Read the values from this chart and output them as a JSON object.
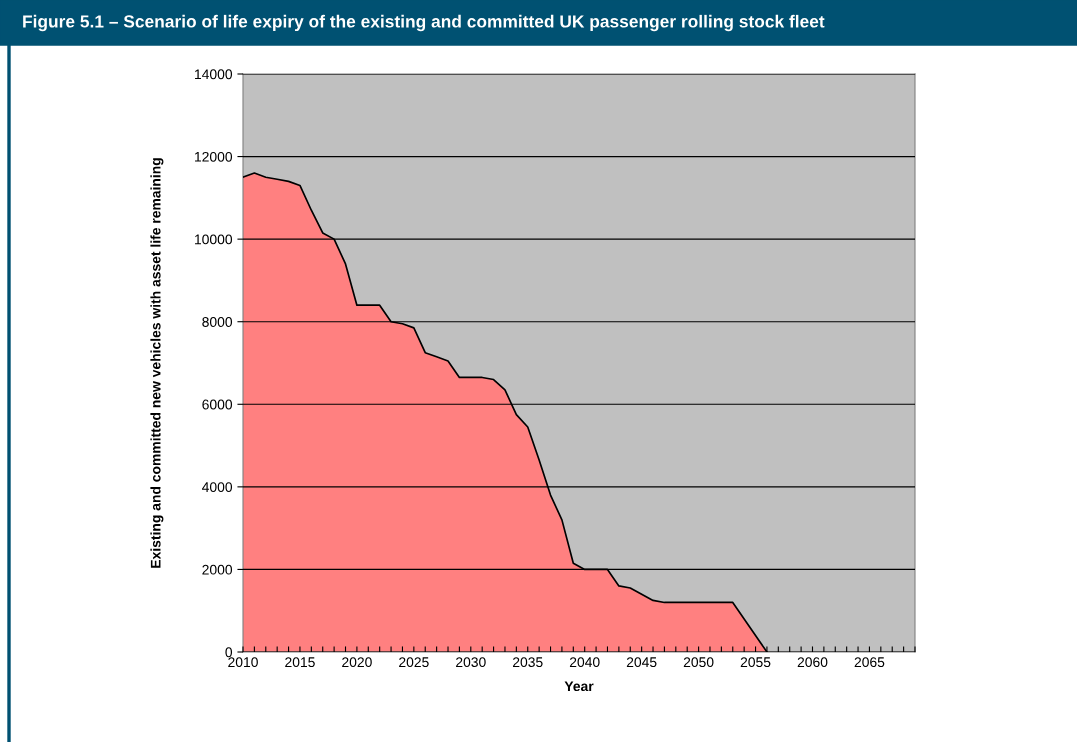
{
  "chart_data": {
    "type": "area",
    "title": "Figure 5.1 – Scenario of life expiry of the existing and committed UK passenger rolling stock fleet",
    "xlabel": "Year",
    "ylabel": "Existing and committed new vehicles with asset life remaining",
    "x": [
      2010,
      2011,
      2012,
      2013,
      2014,
      2015,
      2016,
      2017,
      2018,
      2019,
      2020,
      2021,
      2022,
      2023,
      2024,
      2025,
      2026,
      2027,
      2028,
      2029,
      2030,
      2031,
      2032,
      2033,
      2034,
      2035,
      2036,
      2037,
      2038,
      2039,
      2040,
      2041,
      2042,
      2043,
      2044,
      2045,
      2046,
      2047,
      2048,
      2049,
      2050,
      2051,
      2052,
      2053,
      2054,
      2055,
      2056
    ],
    "series": [
      {
        "color": "#ff8080",
        "values": [
          11500,
          11600,
          11500,
          11450,
          11400,
          11300,
          10700,
          10150,
          10000,
          9400,
          8400,
          8400,
          8400,
          8000,
          7950,
          7850,
          7250,
          7150,
          7050,
          6650,
          6650,
          6650,
          6600,
          6350,
          5750,
          5450,
          4650,
          3800,
          3200,
          2150,
          2000,
          2000,
          2000,
          1600,
          1550,
          1400,
          1250,
          1200,
          1200,
          1200,
          1200,
          1200,
          1200,
          1200,
          800,
          400,
          0
        ]
      }
    ],
    "xlim": [
      2010,
      2069
    ],
    "xticks": [
      2010,
      {
        "value": 2011,
        "label": null
      },
      {
        "value": 2012,
        "label": null
      },
      {
        "value": 2013,
        "label": null
      },
      {
        "value": 2014,
        "label": null
      },
      2015,
      {
        "value": 2016,
        "label": null
      },
      {
        "value": 2017,
        "label": null
      },
      {
        "value": 2018,
        "label": null
      },
      {
        "value": 2019,
        "label": null
      },
      2020,
      {
        "value": 2021,
        "label": null
      },
      {
        "value": 2022,
        "label": null
      },
      {
        "value": 2023,
        "label": null
      },
      {
        "value": 2024,
        "label": null
      },
      2025,
      {
        "value": 2026,
        "label": null
      },
      {
        "value": 2027,
        "label": null
      },
      {
        "value": 2028,
        "label": null
      },
      {
        "value": 2029,
        "label": null
      },
      2030,
      {
        "value": 2031,
        "label": null
      },
      {
        "value": 2032,
        "label": null
      },
      {
        "value": 2033,
        "label": null
      },
      {
        "value": 2034,
        "label": null
      },
      2035,
      {
        "value": 2036,
        "label": null
      },
      {
        "value": 2037,
        "label": null
      },
      {
        "value": 2038,
        "label": null
      },
      {
        "value": 2039,
        "label": null
      },
      2040,
      {
        "value": 2041,
        "label": null
      },
      {
        "value": 2042,
        "label": null
      },
      {
        "value": 2043,
        "label": null
      },
      {
        "value": 2044,
        "label": null
      },
      2045,
      {
        "value": 2046,
        "label": null
      },
      {
        "value": 2047,
        "label": null
      },
      {
        "value": 2048,
        "label": null
      },
      {
        "value": 2049,
        "label": null
      },
      2050,
      {
        "value": 2051,
        "label": null
      },
      {
        "value": 2052,
        "label": null
      },
      {
        "value": 2053,
        "label": null
      },
      {
        "value": 2054,
        "label": null
      },
      2055,
      {
        "value": 2056,
        "label": null
      },
      {
        "value": 2057,
        "label": null
      },
      {
        "value": 2058,
        "label": null
      },
      {
        "value": 2059,
        "label": null
      },
      2060,
      {
        "value": 2061,
        "label": null
      },
      {
        "value": 2062,
        "label": null
      },
      {
        "value": 2063,
        "label": null
      },
      {
        "value": 2064,
        "label": null
      },
      2065,
      {
        "value": 2066,
        "label": null
      },
      {
        "value": 2067,
        "label": null
      },
      {
        "value": 2068,
        "label": null
      },
      {
        "value": 2069,
        "label": null
      }
    ],
    "ylim": [
      0,
      14000
    ],
    "yticks": [
      0,
      2000,
      4000,
      6000,
      8000,
      10000,
      12000,
      14000
    ],
    "grid": "y",
    "legend": false
  }
}
